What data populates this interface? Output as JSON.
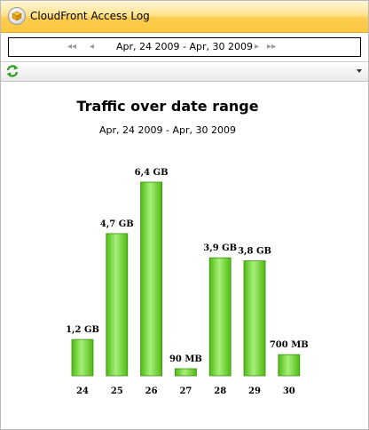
{
  "window": {
    "title": "CloudFront Access Log"
  },
  "nav": {
    "date_range": "Apr, 24 2009 - Apr, 30 2009",
    "first_glyph": "◂◂",
    "prev_glyph": "◂",
    "next_glyph": "▸",
    "last_glyph": "▸▸"
  },
  "toolbar": {
    "refresh_icon": "refresh-icon",
    "menu_icon": "chevron-down-icon"
  },
  "colors": {
    "bar_light": "#a6f07a",
    "bar_dark": "#4fba12",
    "bar_border": "#3f8f0f",
    "title_bar": "#fcd055"
  },
  "chart_data": {
    "type": "bar",
    "title": "Traffic over date range",
    "subtitle": "Apr, 24 2009 - Apr, 30 2009",
    "categories": [
      "24",
      "25",
      "26",
      "27",
      "28",
      "29",
      "30"
    ],
    "values": [
      1.2,
      4.7,
      6.4,
      0.09,
      3.9,
      3.8,
      0.7
    ],
    "value_unit": "GB",
    "data_labels": [
      "1,2 GB",
      "4,7 GB",
      "6,4 GB",
      "90 MB",
      "3,9 GB",
      "3,8 GB",
      "700 MB"
    ],
    "xlabel": "",
    "ylabel": "",
    "ylim": [
      0,
      6.4
    ],
    "grid": false,
    "legend": "none"
  }
}
